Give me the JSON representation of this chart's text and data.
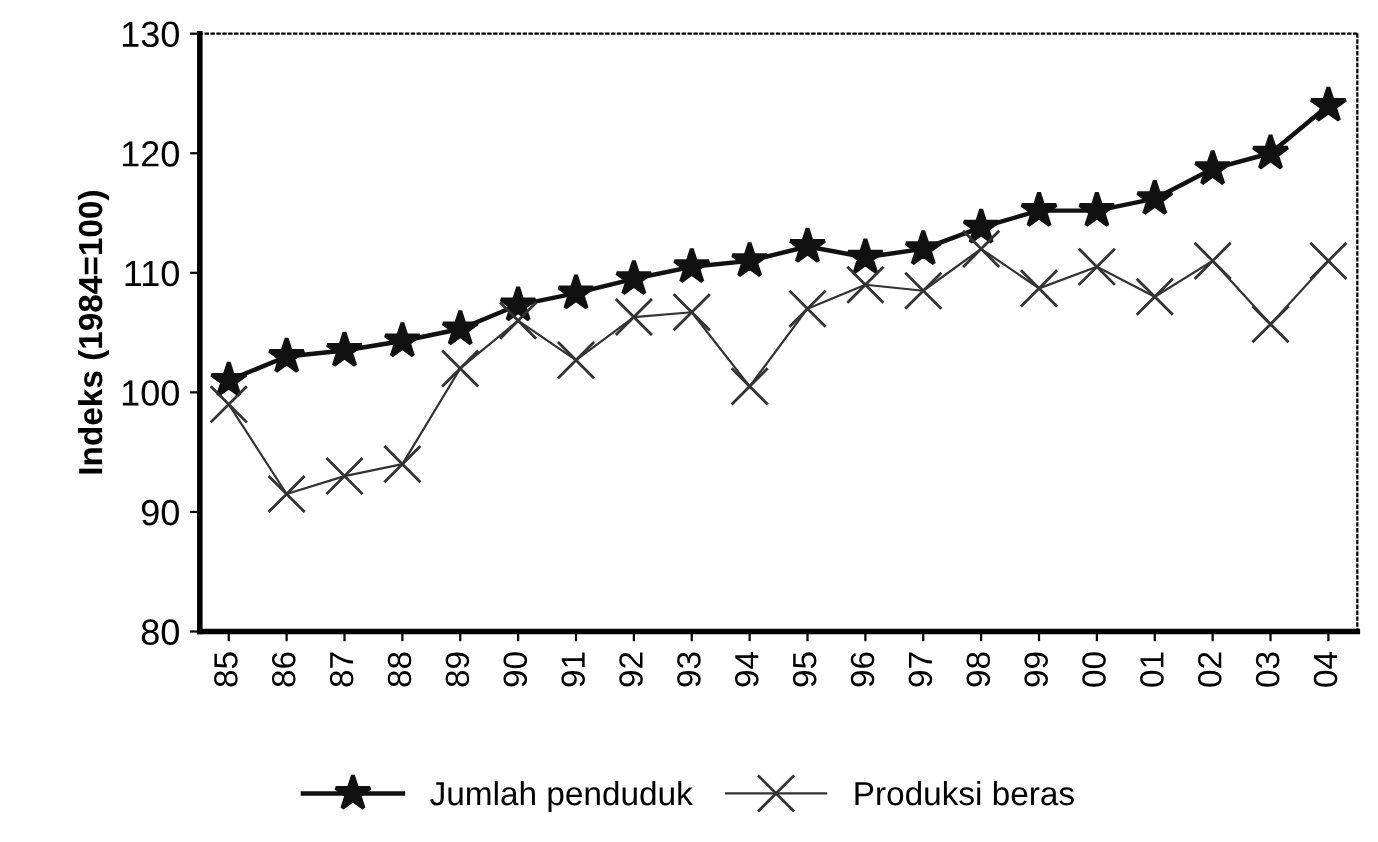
{
  "chart_data": {
    "type": "line",
    "ylabel": "Indeks (1984=100)",
    "categories": [
      "85",
      "86",
      "87",
      "88",
      "89",
      "90",
      "91",
      "92",
      "93",
      "94",
      "95",
      "96",
      "97",
      "98",
      "99",
      "00",
      "01",
      "02",
      "03",
      "04"
    ],
    "series": [
      {
        "name": "Jumlah penduduk",
        "color": "#111111",
        "marker": "star",
        "values": [
          101,
          103,
          103.5,
          104.3,
          105.3,
          107.3,
          108.3,
          109.5,
          110.5,
          111,
          112.2,
          111.3,
          112,
          113.8,
          115.2,
          115.2,
          116.2,
          118.7,
          120,
          124
        ]
      },
      {
        "name": "Produksi beras",
        "color": "#333333",
        "marker": "cross",
        "values": [
          99,
          91.5,
          93,
          94,
          102,
          106,
          102.7,
          106.3,
          106.7,
          100.5,
          107,
          109,
          108.5,
          112,
          108.7,
          110.5,
          108,
          111,
          105.7,
          111
        ]
      }
    ],
    "ylim": [
      80,
      130
    ],
    "yticks": [
      80,
      90,
      100,
      110,
      120,
      130
    ],
    "grid": false,
    "legend": "bottom",
    "line_style": "solid"
  }
}
